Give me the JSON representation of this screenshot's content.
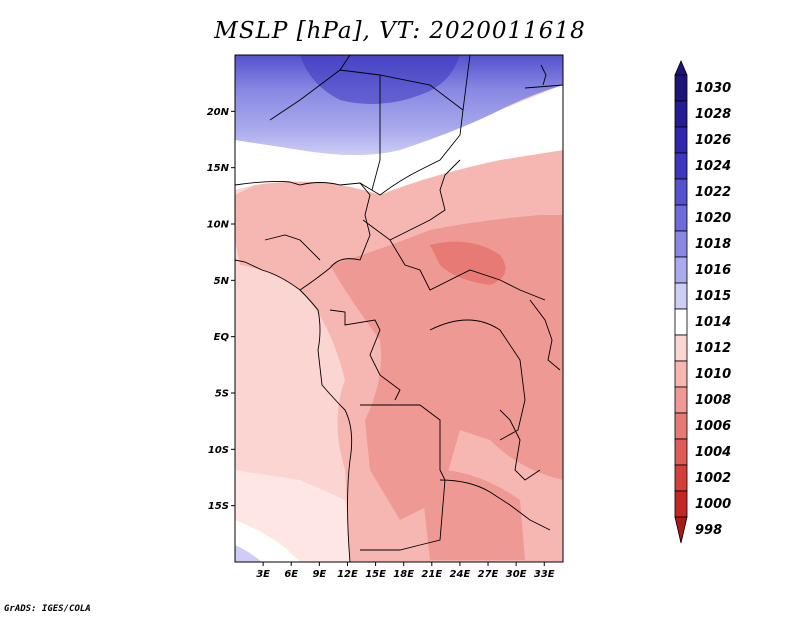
{
  "title": "MSLP [hPa], VT: 2020011618",
  "credit": "GrADS: IGES/COLA",
  "map": {
    "variable": "MSLP",
    "units": "hPa",
    "valid_time": "2020011618",
    "lon_range": [
      0,
      35
    ],
    "lat_range": [
      -20,
      25
    ],
    "lat_ticks": [
      {
        "value": 20,
        "label": "20N"
      },
      {
        "value": 15,
        "label": "15N"
      },
      {
        "value": 10,
        "label": "10N"
      },
      {
        "value": 5,
        "label": "5N"
      },
      {
        "value": 0,
        "label": "EQ"
      },
      {
        "value": -5,
        "label": "5S"
      },
      {
        "value": -10,
        "label": "10S"
      },
      {
        "value": -15,
        "label": "15S"
      }
    ],
    "lon_ticks": [
      {
        "value": 3,
        "label": "3E"
      },
      {
        "value": 6,
        "label": "6E"
      },
      {
        "value": 9,
        "label": "9E"
      },
      {
        "value": 12,
        "label": "12E"
      },
      {
        "value": 15,
        "label": "15E"
      },
      {
        "value": 18,
        "label": "18E"
      },
      {
        "value": 21,
        "label": "21E"
      },
      {
        "value": 24,
        "label": "24E"
      },
      {
        "value": 27,
        "label": "27E"
      },
      {
        "value": 30,
        "label": "30E"
      },
      {
        "value": 33,
        "label": "33E"
      }
    ]
  },
  "colorbar": {
    "levels": [
      {
        "label": "1030",
        "color": "#1e1478"
      },
      {
        "label": "1028",
        "color": "#251b94"
      },
      {
        "label": "1026",
        "color": "#2f27ad"
      },
      {
        "label": "1024",
        "color": "#3d37c0"
      },
      {
        "label": "1022",
        "color": "#5452cd"
      },
      {
        "label": "1020",
        "color": "#6d6cd9"
      },
      {
        "label": "1018",
        "color": "#8988e3"
      },
      {
        "label": "1016",
        "color": "#aaaaed"
      },
      {
        "label": "1015",
        "color": "#cdcdf6"
      },
      {
        "label": "1014",
        "color": "#ffffff"
      },
      {
        "label": "1012",
        "color": "#fbd5d2"
      },
      {
        "label": "1010",
        "color": "#f6b7b2"
      },
      {
        "label": "1008",
        "color": "#ee9994"
      },
      {
        "label": "1006",
        "color": "#e77a75"
      },
      {
        "label": "1004",
        "color": "#de5b57"
      },
      {
        "label": "1002",
        "color": "#d33f3b"
      },
      {
        "label": "1000",
        "color": "#c32825"
      },
      {
        "label": "998",
        "color": "#a91a17"
      }
    ]
  }
}
